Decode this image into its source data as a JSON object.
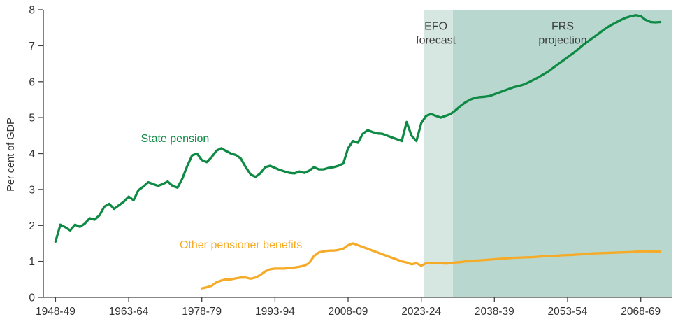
{
  "chart_data": {
    "type": "line",
    "title": "",
    "xlabel": "",
    "ylabel": "Per cent of GDP",
    "ylim": [
      0,
      8
    ],
    "xlim": [
      1945.5,
      2074.5
    ],
    "grid": false,
    "legend_position": "inline-annotations",
    "y_ticks": [
      0,
      1,
      2,
      3,
      4,
      5,
      6,
      7,
      8
    ],
    "x_ticks": [
      {
        "year": 1948,
        "label": "1948-49"
      },
      {
        "year": 1963,
        "label": "1963-64"
      },
      {
        "year": 1978,
        "label": "1978-79"
      },
      {
        "year": 1993,
        "label": "1993-94"
      },
      {
        "year": 2008,
        "label": "2008-09"
      },
      {
        "year": 2023,
        "label": "2023-24"
      },
      {
        "year": 2038,
        "label": "2038-39"
      },
      {
        "year": 2053,
        "label": "2053-54"
      },
      {
        "year": 2068,
        "label": "2068-69"
      }
    ],
    "bands": [
      {
        "name": "efo-forecast-band",
        "label": "EFO forecast",
        "from": 2023.5,
        "to": 2029.5,
        "color": "#d6e7e2"
      },
      {
        "name": "frs-projection-band",
        "label": "FRS projection",
        "from": 2029.5,
        "to": 2074.5,
        "color": "#b7d7cf"
      }
    ],
    "series": [
      {
        "id": "state-pension-line",
        "name": "State pension",
        "color": "#0e8a44",
        "points": [
          [
            1948,
            1.55
          ],
          [
            1949,
            2.02
          ],
          [
            1950,
            1.95
          ],
          [
            1951,
            1.86
          ],
          [
            1952,
            2.02
          ],
          [
            1953,
            1.96
          ],
          [
            1954,
            2.05
          ],
          [
            1955,
            2.2
          ],
          [
            1956,
            2.16
          ],
          [
            1957,
            2.28
          ],
          [
            1958,
            2.52
          ],
          [
            1959,
            2.6
          ],
          [
            1960,
            2.46
          ],
          [
            1961,
            2.56
          ],
          [
            1962,
            2.66
          ],
          [
            1963,
            2.8
          ],
          [
            1964,
            2.7
          ],
          [
            1965,
            2.98
          ],
          [
            1966,
            3.08
          ],
          [
            1967,
            3.2
          ],
          [
            1968,
            3.15
          ],
          [
            1969,
            3.1
          ],
          [
            1970,
            3.15
          ],
          [
            1971,
            3.22
          ],
          [
            1972,
            3.1
          ],
          [
            1973,
            3.05
          ],
          [
            1974,
            3.3
          ],
          [
            1975,
            3.65
          ],
          [
            1976,
            3.95
          ],
          [
            1977,
            4.0
          ],
          [
            1978,
            3.82
          ],
          [
            1979,
            3.76
          ],
          [
            1980,
            3.9
          ],
          [
            1981,
            4.08
          ],
          [
            1982,
            4.15
          ],
          [
            1983,
            4.07
          ],
          [
            1984,
            4.0
          ],
          [
            1985,
            3.96
          ],
          [
            1986,
            3.86
          ],
          [
            1987,
            3.62
          ],
          [
            1988,
            3.42
          ],
          [
            1989,
            3.35
          ],
          [
            1990,
            3.45
          ],
          [
            1991,
            3.62
          ],
          [
            1992,
            3.66
          ],
          [
            1993,
            3.6
          ],
          [
            1994,
            3.54
          ],
          [
            1995,
            3.5
          ],
          [
            1996,
            3.46
          ],
          [
            1997,
            3.45
          ],
          [
            1998,
            3.5
          ],
          [
            1999,
            3.46
          ],
          [
            2000,
            3.52
          ],
          [
            2001,
            3.62
          ],
          [
            2002,
            3.56
          ],
          [
            2003,
            3.56
          ],
          [
            2004,
            3.6
          ],
          [
            2005,
            3.62
          ],
          [
            2006,
            3.66
          ],
          [
            2007,
            3.72
          ],
          [
            2008,
            4.15
          ],
          [
            2009,
            4.35
          ],
          [
            2010,
            4.3
          ],
          [
            2011,
            4.55
          ],
          [
            2012,
            4.65
          ],
          [
            2013,
            4.6
          ],
          [
            2014,
            4.56
          ],
          [
            2015,
            4.55
          ],
          [
            2016,
            4.5
          ],
          [
            2017,
            4.45
          ],
          [
            2018,
            4.4
          ],
          [
            2019,
            4.35
          ],
          [
            2020,
            4.88
          ],
          [
            2021,
            4.5
          ],
          [
            2022,
            4.35
          ],
          [
            2023,
            4.85
          ],
          [
            2024,
            5.05
          ],
          [
            2025,
            5.1
          ],
          [
            2026,
            5.05
          ],
          [
            2027,
            5.0
          ],
          [
            2028,
            5.05
          ],
          [
            2029,
            5.1
          ],
          [
            2030,
            5.2
          ],
          [
            2031,
            5.32
          ],
          [
            2032,
            5.42
          ],
          [
            2033,
            5.5
          ],
          [
            2034,
            5.55
          ],
          [
            2035,
            5.57
          ],
          [
            2036,
            5.58
          ],
          [
            2037,
            5.6
          ],
          [
            2038,
            5.65
          ],
          [
            2039,
            5.7
          ],
          [
            2040,
            5.75
          ],
          [
            2041,
            5.8
          ],
          [
            2042,
            5.85
          ],
          [
            2043,
            5.88
          ],
          [
            2044,
            5.92
          ],
          [
            2045,
            5.98
          ],
          [
            2046,
            6.05
          ],
          [
            2047,
            6.12
          ],
          [
            2048,
            6.2
          ],
          [
            2049,
            6.28
          ],
          [
            2050,
            6.38
          ],
          [
            2051,
            6.48
          ],
          [
            2052,
            6.58
          ],
          [
            2053,
            6.68
          ],
          [
            2054,
            6.78
          ],
          [
            2055,
            6.88
          ],
          [
            2056,
            7.0
          ],
          [
            2057,
            7.1
          ],
          [
            2058,
            7.2
          ],
          [
            2059,
            7.3
          ],
          [
            2060,
            7.4
          ],
          [
            2061,
            7.5
          ],
          [
            2062,
            7.58
          ],
          [
            2063,
            7.65
          ],
          [
            2064,
            7.72
          ],
          [
            2065,
            7.78
          ],
          [
            2066,
            7.82
          ],
          [
            2067,
            7.85
          ],
          [
            2068,
            7.82
          ],
          [
            2069,
            7.72
          ],
          [
            2070,
            7.66
          ],
          [
            2071,
            7.65
          ],
          [
            2072,
            7.66
          ]
        ]
      },
      {
        "id": "other-pensioner-benefits-line",
        "name": "Other pensioner benefits",
        "color": "#f5ab27",
        "points": [
          [
            1978,
            0.25
          ],
          [
            1979,
            0.28
          ],
          [
            1980,
            0.32
          ],
          [
            1981,
            0.42
          ],
          [
            1982,
            0.47
          ],
          [
            1983,
            0.5
          ],
          [
            1984,
            0.5
          ],
          [
            1985,
            0.53
          ],
          [
            1986,
            0.55
          ],
          [
            1987,
            0.55
          ],
          [
            1988,
            0.52
          ],
          [
            1989,
            0.55
          ],
          [
            1990,
            0.62
          ],
          [
            1991,
            0.72
          ],
          [
            1992,
            0.78
          ],
          [
            1993,
            0.8
          ],
          [
            1994,
            0.8
          ],
          [
            1995,
            0.8
          ],
          [
            1996,
            0.82
          ],
          [
            1997,
            0.83
          ],
          [
            1998,
            0.85
          ],
          [
            1999,
            0.88
          ],
          [
            2000,
            0.95
          ],
          [
            2001,
            1.15
          ],
          [
            2002,
            1.25
          ],
          [
            2003,
            1.28
          ],
          [
            2004,
            1.3
          ],
          [
            2005,
            1.3
          ],
          [
            2006,
            1.32
          ],
          [
            2007,
            1.35
          ],
          [
            2008,
            1.45
          ],
          [
            2009,
            1.5
          ],
          [
            2010,
            1.45
          ],
          [
            2011,
            1.4
          ],
          [
            2012,
            1.35
          ],
          [
            2013,
            1.3
          ],
          [
            2014,
            1.25
          ],
          [
            2015,
            1.2
          ],
          [
            2016,
            1.15
          ],
          [
            2017,
            1.1
          ],
          [
            2018,
            1.05
          ],
          [
            2019,
            1.0
          ],
          [
            2020,
            0.97
          ],
          [
            2021,
            0.92
          ],
          [
            2022,
            0.95
          ],
          [
            2023,
            0.88
          ],
          [
            2024,
            0.95
          ],
          [
            2025,
            0.96
          ],
          [
            2026,
            0.95
          ],
          [
            2027,
            0.95
          ],
          [
            2028,
            0.94
          ],
          [
            2029,
            0.95
          ],
          [
            2030,
            0.97
          ],
          [
            2031,
            0.98
          ],
          [
            2032,
            1.0
          ],
          [
            2033,
            1.0
          ],
          [
            2034,
            1.02
          ],
          [
            2035,
            1.03
          ],
          [
            2036,
            1.04
          ],
          [
            2037,
            1.05
          ],
          [
            2038,
            1.06
          ],
          [
            2039,
            1.07
          ],
          [
            2040,
            1.08
          ],
          [
            2042,
            1.1
          ],
          [
            2044,
            1.11
          ],
          [
            2046,
            1.12
          ],
          [
            2048,
            1.14
          ],
          [
            2050,
            1.15
          ],
          [
            2052,
            1.17
          ],
          [
            2054,
            1.18
          ],
          [
            2056,
            1.2
          ],
          [
            2058,
            1.22
          ],
          [
            2060,
            1.23
          ],
          [
            2062,
            1.24
          ],
          [
            2064,
            1.25
          ],
          [
            2066,
            1.26
          ],
          [
            2068,
            1.28
          ],
          [
            2070,
            1.28
          ],
          [
            2072,
            1.27
          ]
        ]
      }
    ],
    "annotations": [
      {
        "name": "state-pension-label",
        "lines": [
          "State pension"
        ],
        "x": 1972.5,
        "y": 4.32,
        "color": "#0e8a44"
      },
      {
        "name": "other-pensioner-benefits-label",
        "lines": [
          "Other pensioner benefits"
        ],
        "x": 1986,
        "y": 1.36,
        "color": "#f5ab27"
      },
      {
        "name": "efo-forecast-label",
        "lines": [
          "EFO",
          "forecast"
        ],
        "x": 2026,
        "y": 7.45,
        "color": "#3d3d3d"
      },
      {
        "name": "frs-projection-label",
        "lines": [
          "FRS",
          "projection"
        ],
        "x": 2052,
        "y": 7.45,
        "color": "#3d3d3d"
      }
    ]
  }
}
